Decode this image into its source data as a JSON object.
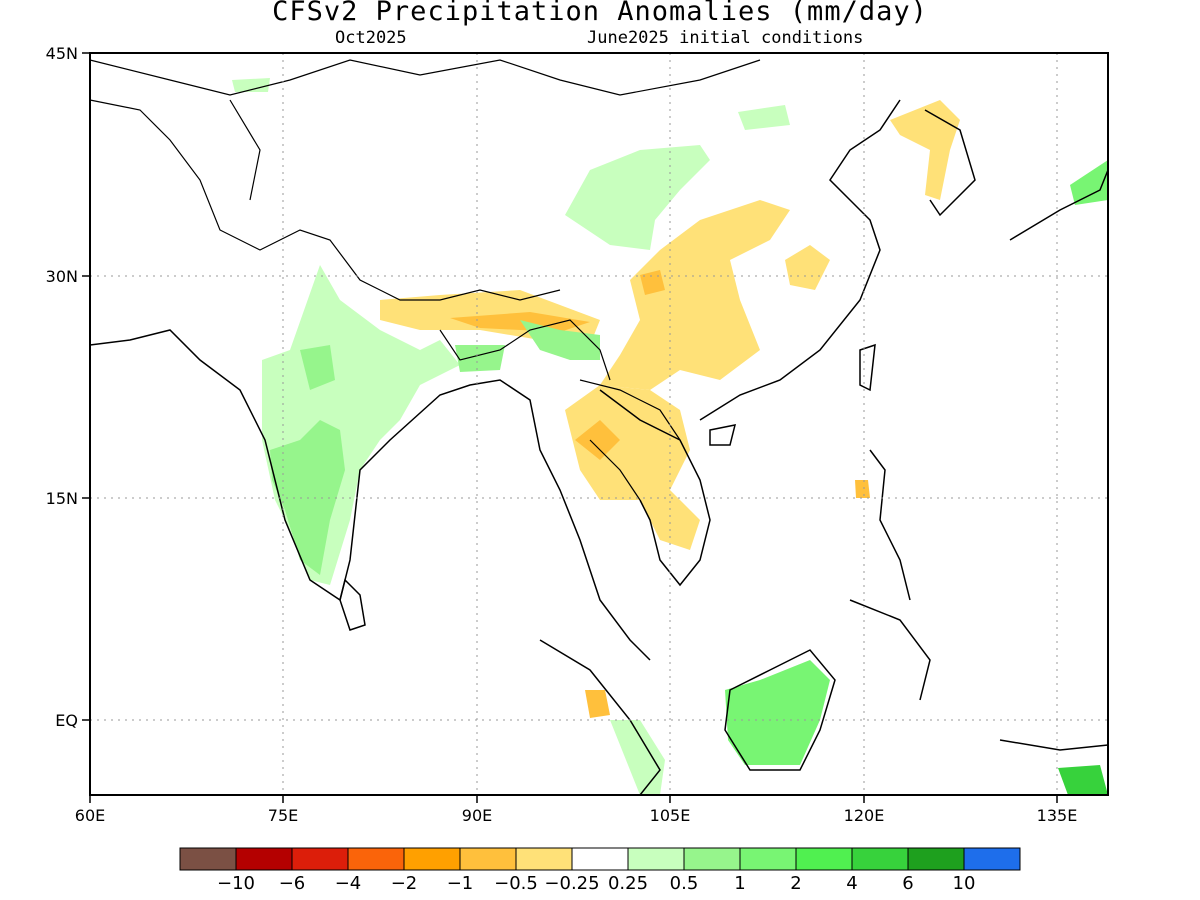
{
  "title": "CFSv2 Precipitation Anomalies (mm/day)",
  "subtitle_left": "Oct2025",
  "subtitle_right": "June2025 initial conditions",
  "lat_labels": [
    "45N",
    "30N",
    "15N",
    "EQ"
  ],
  "lon_labels": [
    "60E",
    "75E",
    "90E",
    "105E",
    "120E",
    "135E"
  ],
  "colorbar": {
    "colors": [
      "#7b5044",
      "#b40000",
      "#dc1e0a",
      "#fa640a",
      "#ffa000",
      "#ffc03c",
      "#ffe178",
      "#ffffff",
      "#c8ffbe",
      "#96f58c",
      "#78f573",
      "#50f050",
      "#37d23c",
      "#1ea01e",
      "#1e6eeb"
    ],
    "labels": [
      "−10",
      "−6",
      "−4",
      "−2",
      "−1",
      "−0.5",
      "−0.25",
      "0.25",
      "0.5",
      "1",
      "2",
      "4",
      "6",
      "10"
    ]
  },
  "regions": [
    {
      "name": "korea-tibet-yellow",
      "color": "#ffe178"
    },
    {
      "name": "india-green",
      "color": "#c8ffbe"
    },
    {
      "name": "india-midgreen",
      "color": "#96f58c"
    },
    {
      "name": "borneo-green",
      "color": "#78f573"
    },
    {
      "name": "newguinea-green",
      "color": "#37d23c"
    }
  ]
}
